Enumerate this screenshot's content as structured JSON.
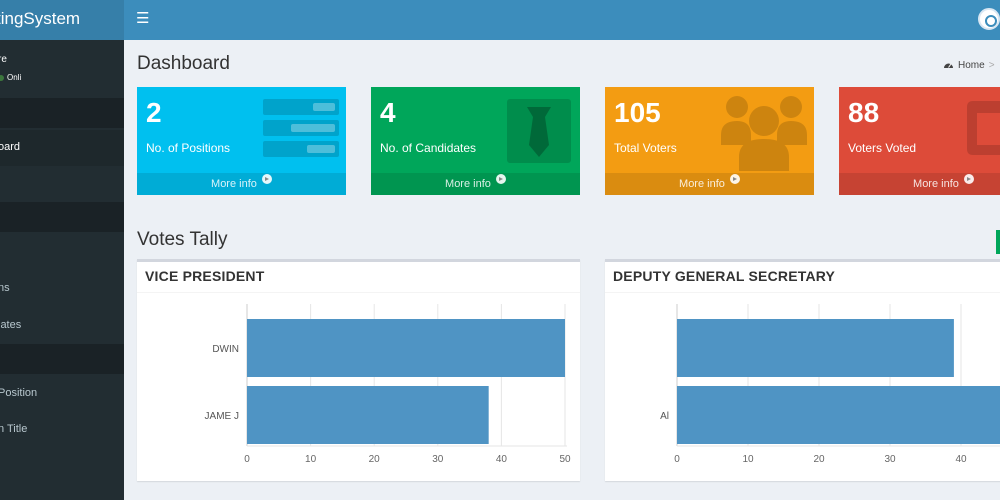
{
  "sidebar": {
    "logo": "tingSystem",
    "user_name": "re",
    "user_status": "Onli",
    "items": [
      {
        "label": "oard",
        "active": true
      },
      {
        "label": "ns"
      },
      {
        "label": "lates"
      },
      {
        "label": "Position"
      },
      {
        "label": "n Title"
      }
    ]
  },
  "topbar": {
    "menu_icon": "menu-icon",
    "avatar_icon": "user-avatar"
  },
  "header": {
    "title": "Dashboard",
    "breadcrumb_home": "Home",
    "breadcrumb_sep": ">"
  },
  "stats": [
    {
      "value": "2",
      "label": "No. of Positions",
      "more": "More info",
      "icon": "list-icon",
      "color": "#00c0ef"
    },
    {
      "value": "4",
      "label": "No. of Candidates",
      "more": "More info",
      "icon": "tie-icon",
      "color": "#00a65a"
    },
    {
      "value": "105",
      "label": "Total Voters",
      "more": "More info",
      "icon": "users-icon",
      "color": "#f39c12"
    },
    {
      "value": "88",
      "label": "Voters Voted",
      "more": "More info",
      "icon": "edit-icon",
      "color": "#dd4b39"
    }
  ],
  "tally": {
    "title": "Votes Tally"
  },
  "chart_data": [
    {
      "type": "bar",
      "orientation": "horizontal",
      "title": "VICE PRESIDENT",
      "categories": [
        "DWIN",
        "JAME J"
      ],
      "values": [
        50,
        38
      ],
      "xlim": [
        0,
        50
      ],
      "ticks": [
        0,
        10,
        20,
        30,
        40,
        50
      ],
      "color": "#4f94c4"
    },
    {
      "type": "bar",
      "orientation": "horizontal",
      "title": "DEPUTY GENERAL SECRETARY",
      "categories": [
        "",
        "Al"
      ],
      "values": [
        39,
        52
      ],
      "xlim": [
        0,
        50
      ],
      "ticks": [
        0,
        10,
        20,
        30,
        40
      ],
      "color": "#4f94c4"
    }
  ]
}
